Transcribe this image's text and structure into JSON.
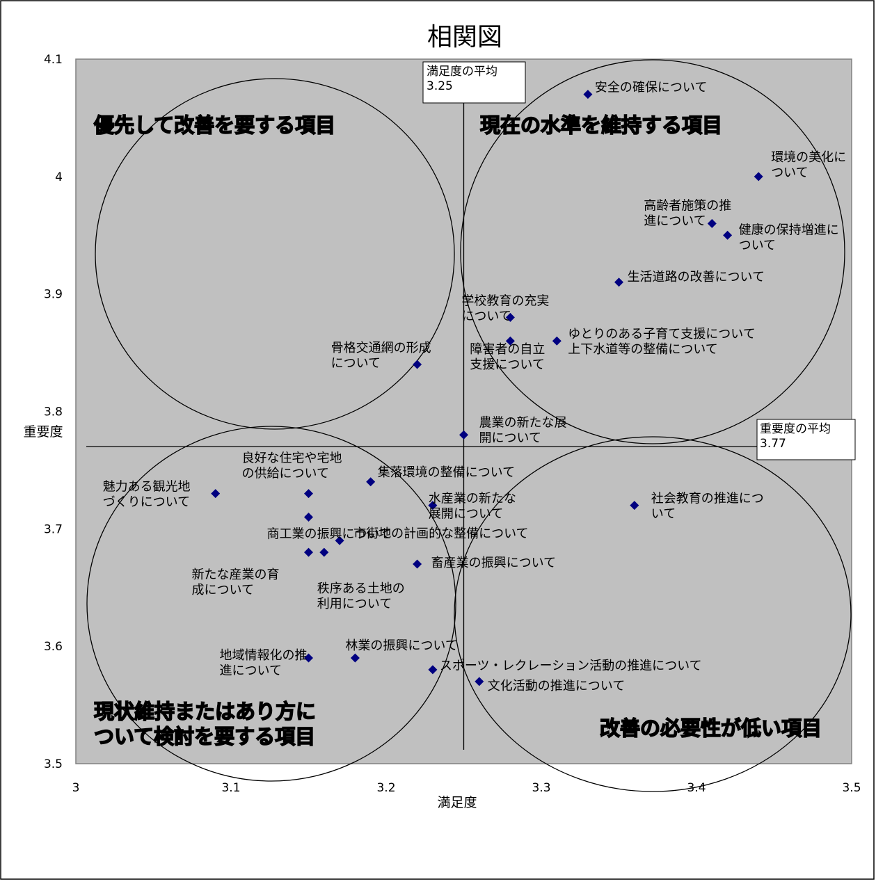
{
  "chart_data": {
    "type": "scatter",
    "title": "相関図",
    "xlabel": "満足度",
    "ylabel": "重要度",
    "xlim": [
      3,
      3.5
    ],
    "ylim": [
      3.5,
      4.1
    ],
    "x_ticks": [
      "3",
      "3.1",
      "3.2",
      "3.3",
      "3.4",
      "3.5"
    ],
    "y_ticks": [
      "3.5",
      "3.6",
      "3.7",
      "3.8",
      "3.9",
      "4",
      "4.1"
    ],
    "grid": false,
    "plot_background": "#c0c0c0",
    "marker_color": "#000080",
    "marker": "diamond",
    "points": [
      {
        "label": [
          "安全の確保について"
        ],
        "x": 3.33,
        "y": 4.07
      },
      {
        "label": [
          "環境の美化に",
          "ついて"
        ],
        "x": 3.44,
        "y": 4.0
      },
      {
        "label": [
          "高齢者施策の推",
          "進について"
        ],
        "x": 3.41,
        "y": 3.96
      },
      {
        "label": [
          "健康の保持増進に",
          "ついて"
        ],
        "x": 3.42,
        "y": 3.95
      },
      {
        "label": [
          "生活道路の改善について"
        ],
        "x": 3.35,
        "y": 3.91
      },
      {
        "label": [
          "学校教育の充実",
          "について"
        ],
        "x": 3.28,
        "y": 3.88
      },
      {
        "label": [
          "障害者の自立",
          "支援について"
        ],
        "x": 3.28,
        "y": 3.86
      },
      {
        "label": [
          "ゆとりのある子育て支援について",
          "上下水道等の整備について"
        ],
        "x": 3.31,
        "y": 3.86
      },
      {
        "label": [
          "骨格交通網の形成",
          "について"
        ],
        "x": 3.22,
        "y": 3.84
      },
      {
        "label": [
          "農業の新たな展",
          "開について"
        ],
        "x": 3.25,
        "y": 3.78
      },
      {
        "label": [
          "魅力ある観光地",
          "づくりについて"
        ],
        "x": 3.09,
        "y": 3.73
      },
      {
        "label": [
          "良好な住宅や宅地",
          "の供給について"
        ],
        "x": 3.15,
        "y": 3.73
      },
      {
        "label": [
          "集落環境の整備について"
        ],
        "x": 3.19,
        "y": 3.74
      },
      {
        "label": [
          "商工業の振興について"
        ],
        "x": 3.15,
        "y": 3.71
      },
      {
        "label": [
          "水産業の新たな",
          "展開について"
        ],
        "x": 3.23,
        "y": 3.72
      },
      {
        "label": [
          "社会教育の推進につ",
          "いて"
        ],
        "x": 3.36,
        "y": 3.72
      },
      {
        "label": [
          "市街地の計画的な整備について"
        ],
        "x": 3.17,
        "y": 3.69
      },
      {
        "label": [
          "新たな産業の育",
          "成について"
        ],
        "x": 3.15,
        "y": 3.68
      },
      {
        "label": [
          "秩序ある土地の",
          "利用について"
        ],
        "x": 3.16,
        "y": 3.68
      },
      {
        "label": [
          "畜産業の振興について"
        ],
        "x": 3.22,
        "y": 3.67
      },
      {
        "label": [
          "地域情報化の推",
          "進について"
        ],
        "x": 3.15,
        "y": 3.59
      },
      {
        "label": [
          "林業の振興について"
        ],
        "x": 3.18,
        "y": 3.59
      },
      {
        "label": [
          "スポーツ・レクレーション活動の推進について"
        ],
        "x": 3.23,
        "y": 3.58
      },
      {
        "label": [
          "文化活動の推進について"
        ],
        "x": 3.26,
        "y": 3.57
      }
    ],
    "reference_lines": [
      {
        "orientation": "vertical",
        "value": 3.25,
        "label": [
          "満足度の平均",
          "3.25"
        ]
      },
      {
        "orientation": "horizontal",
        "value": 3.77,
        "label": [
          "重要度の平均",
          "3.77"
        ]
      }
    ],
    "quadrant_labels": [
      {
        "position": "top-left",
        "lines": [
          "優先して改善を要する項目"
        ]
      },
      {
        "position": "top-right",
        "lines": [
          "現在の水準を維持する項目"
        ]
      },
      {
        "position": "bottom-left",
        "lines": [
          "現状維持またはあり方に",
          "ついて検討を要する項目"
        ]
      },
      {
        "position": "bottom-right",
        "lines": [
          "改善の必要性が低い項目"
        ]
      }
    ]
  }
}
